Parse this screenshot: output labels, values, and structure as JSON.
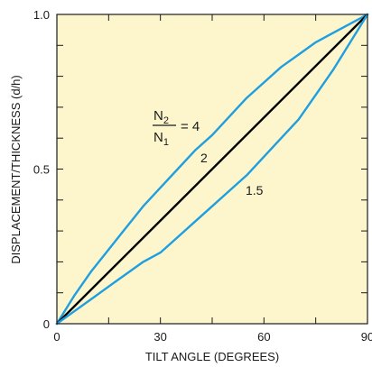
{
  "chart_data": {
    "type": "line",
    "title": "",
    "xlabel": "TILT ANGLE (DEGREES)",
    "ylabel": "DISPLACEMENT/THICKNESS (d/h)",
    "xlim": [
      0,
      90
    ],
    "ylim": [
      0,
      1.0
    ],
    "x_ticks": [
      0,
      30,
      60,
      90
    ],
    "x_tick_labels": [
      "0",
      "30",
      "60",
      "90"
    ],
    "y_ticks": [
      0,
      0.5,
      1.0
    ],
    "y_tick_labels": [
      "0",
      "0.5",
      "1.0"
    ],
    "grid": false,
    "background": "#fdf6cc",
    "series": [
      {
        "name": "4",
        "color": "#1f9ee0",
        "x": [
          0,
          5,
          10,
          15,
          20,
          25,
          30,
          35,
          40,
          45,
          50,
          55,
          60,
          65,
          70,
          75,
          80,
          85,
          90
        ],
        "y": [
          0,
          0.09,
          0.17,
          0.24,
          0.31,
          0.38,
          0.44,
          0.5,
          0.56,
          0.61,
          0.67,
          0.73,
          0.78,
          0.83,
          0.87,
          0.91,
          0.94,
          0.97,
          1.0
        ]
      },
      {
        "name": "2",
        "color": "#000000",
        "x": [
          0,
          90
        ],
        "y": [
          0,
          1.0
        ]
      },
      {
        "name": "1.5",
        "color": "#1f9ee0",
        "x": [
          0,
          5,
          10,
          15,
          20,
          25,
          30,
          35,
          40,
          45,
          50,
          55,
          60,
          65,
          70,
          75,
          80,
          85,
          90
        ],
        "y": [
          0,
          0.04,
          0.08,
          0.12,
          0.16,
          0.2,
          0.23,
          0.28,
          0.33,
          0.38,
          0.43,
          0.48,
          0.54,
          0.6,
          0.66,
          0.74,
          0.82,
          0.91,
          1.0
        ]
      }
    ],
    "annotations": {
      "ratio_numerator": "N",
      "ratio_numerator_sub": "2",
      "ratio_denominator": "N",
      "ratio_denominator_sub": "1",
      "ratio_eq": "= 4",
      "label_2": "2",
      "label_15": "1.5"
    }
  }
}
